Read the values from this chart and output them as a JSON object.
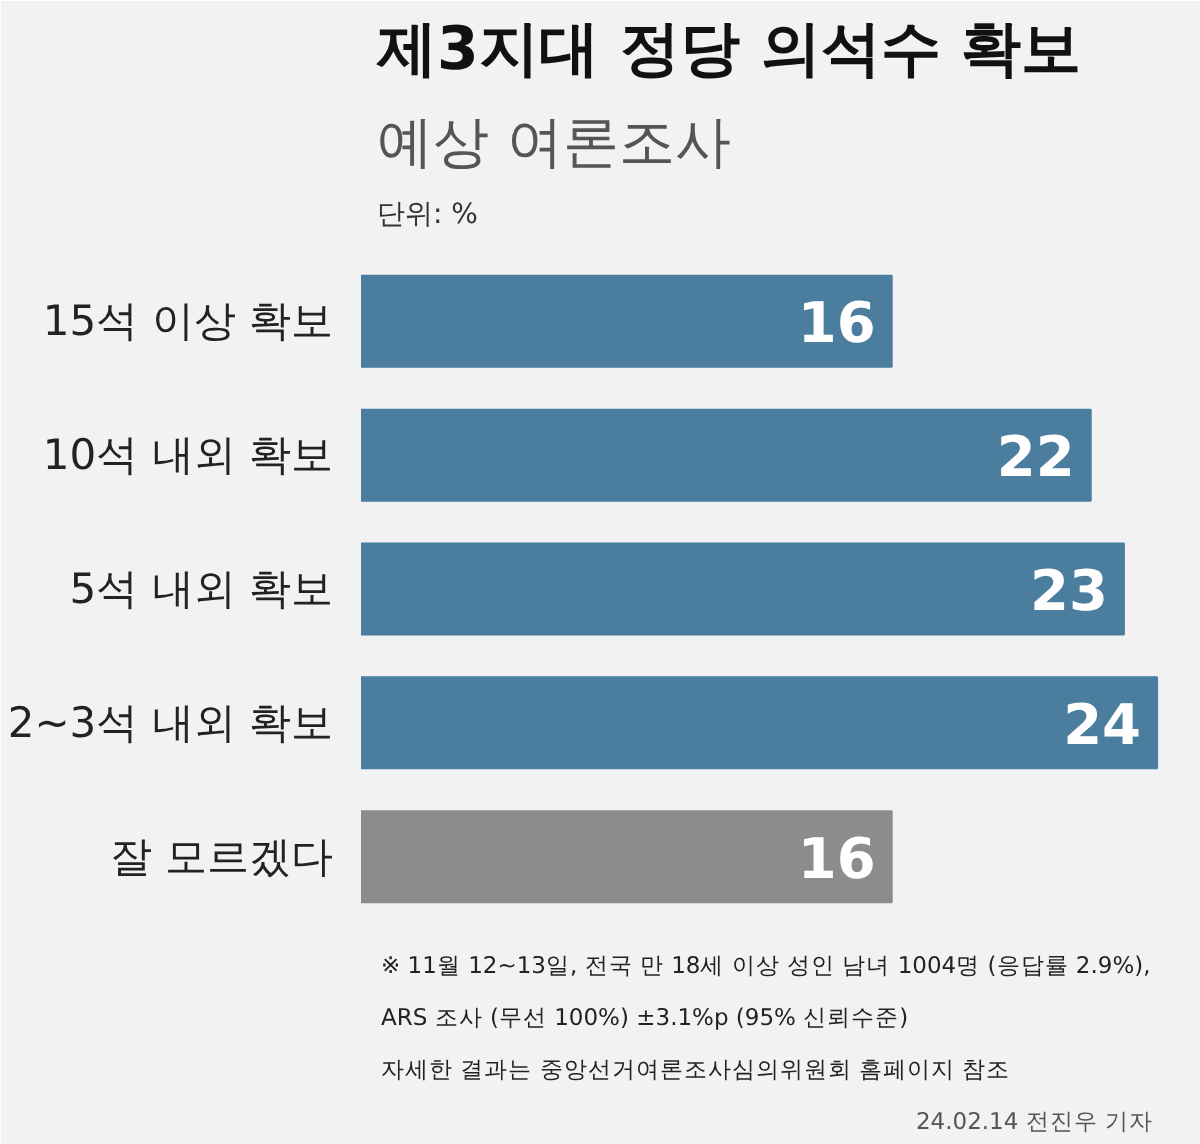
{
  "chart_data": {
    "type": "bar",
    "orientation": "horizontal",
    "title": "제3지대 정당 의석수 확보",
    "subtitle": "예상 여론조사",
    "categories": [
      "15석 이상 확보",
      "10석 내외 확보",
      "5석 내외 확보",
      "2~3석 내외 확보",
      "잘 모르겠다"
    ],
    "values": [
      16,
      22,
      23,
      24,
      16
    ],
    "colors": [
      "#4a7d9e",
      "#4a7d9e",
      "#4a7d9e",
      "#4a7d9e",
      "#8c8c8c"
    ],
    "data_labels": true,
    "annotations": [
      "단위: %",
      "※ 11월 12~13일, 전국 만 18세 이상 성인 남녀 1004명 (응답률 2.9%),",
      "ARS 조사 (무선 100%)  ±3.1%p (95% 신뢰수준)",
      "자세한 결과는 중앙선거여론조사심의위원회 홈페이지 참조",
      "24.02.14 전진우 기자"
    ]
  }
}
